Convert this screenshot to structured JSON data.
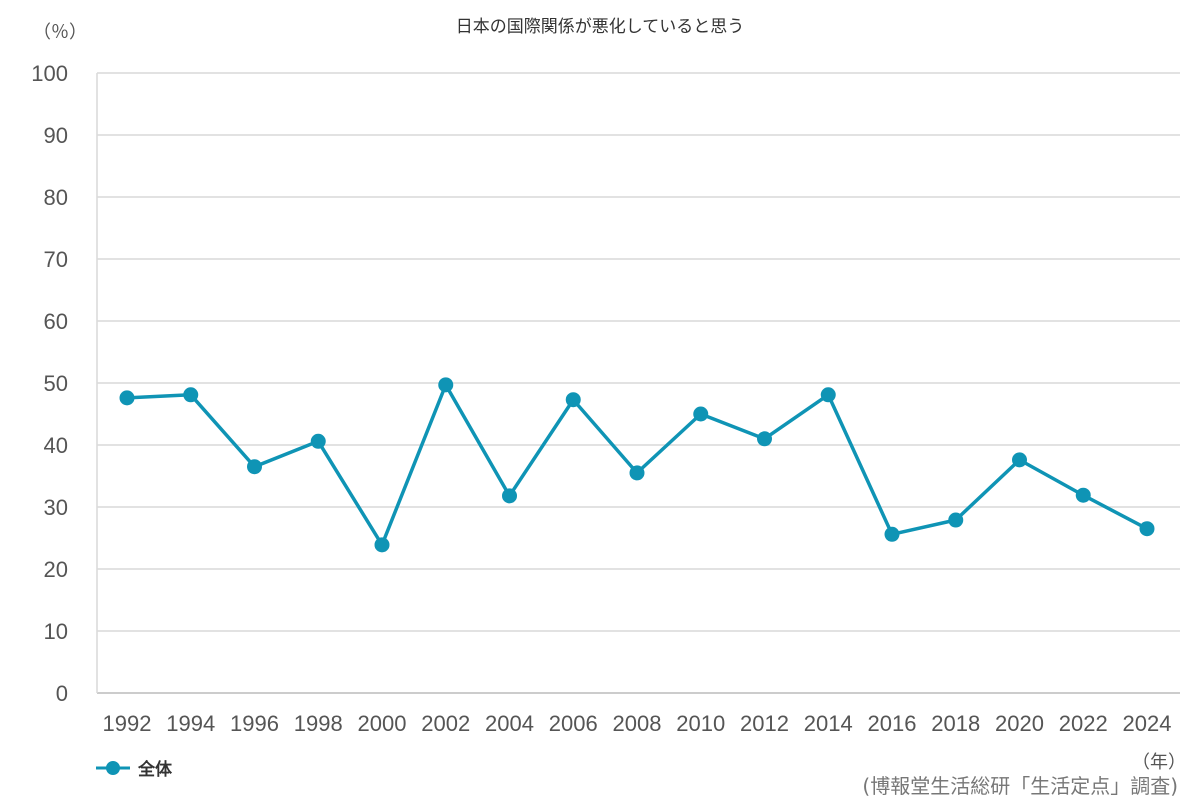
{
  "chart_data": {
    "type": "line",
    "title": "日本の国際関係が悪化していると思う",
    "ylabel": "（％）",
    "xlabel": "（年）",
    "source": "(博報堂生活総研「生活定点」調査)",
    "ylim": [
      0,
      100
    ],
    "yticks": [
      0,
      10,
      20,
      30,
      40,
      50,
      60,
      70,
      80,
      90,
      100
    ],
    "grid": true,
    "legend_position": "bottom-left",
    "categories": [
      "1992",
      "1994",
      "1996",
      "1998",
      "2000",
      "2002",
      "2004",
      "2006",
      "2008",
      "2010",
      "2012",
      "2014",
      "2016",
      "2018",
      "2020",
      "2022",
      "2024"
    ],
    "series": [
      {
        "name": "全体",
        "color": "#0f94b5",
        "values": [
          47.6,
          48.1,
          36.5,
          40.6,
          23.9,
          49.7,
          31.8,
          47.3,
          35.5,
          45.0,
          41.0,
          48.1,
          25.6,
          27.9,
          37.6,
          31.9,
          26.5
        ]
      }
    ]
  }
}
